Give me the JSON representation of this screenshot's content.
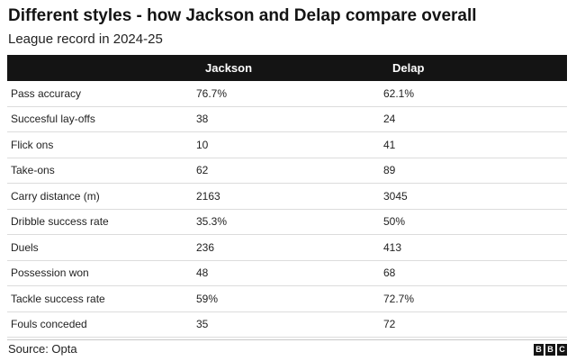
{
  "header": {
    "title": "Different styles - how Jackson and Delap compare overall",
    "subtitle": "League record in 2024-25"
  },
  "table": {
    "columns": [
      "",
      "Jackson",
      "Delap"
    ],
    "rows": [
      {
        "label": "Pass accuracy",
        "jackson": "76.7%",
        "delap": "62.1%"
      },
      {
        "label": "Succesful lay-offs",
        "jackson": "38",
        "delap": "24"
      },
      {
        "label": "Flick ons",
        "jackson": "10",
        "delap": "41"
      },
      {
        "label": "Take-ons",
        "jackson": "62",
        "delap": "89"
      },
      {
        "label": "Carry distance (m)",
        "jackson": "2163",
        "delap": "3045"
      },
      {
        "label": "Dribble success rate",
        "jackson": "35.3%",
        "delap": "50%"
      },
      {
        "label": "Duels",
        "jackson": "236",
        "delap": "413"
      },
      {
        "label": "Possession won",
        "jackson": "48",
        "delap": "68"
      },
      {
        "label": "Tackle success rate",
        "jackson": "59%",
        "delap": "72.7%"
      },
      {
        "label": "Fouls conceded",
        "jackson": "35",
        "delap": "72"
      }
    ]
  },
  "footer": {
    "source": "Source: Opta",
    "logo": [
      "B",
      "B",
      "C"
    ]
  }
}
